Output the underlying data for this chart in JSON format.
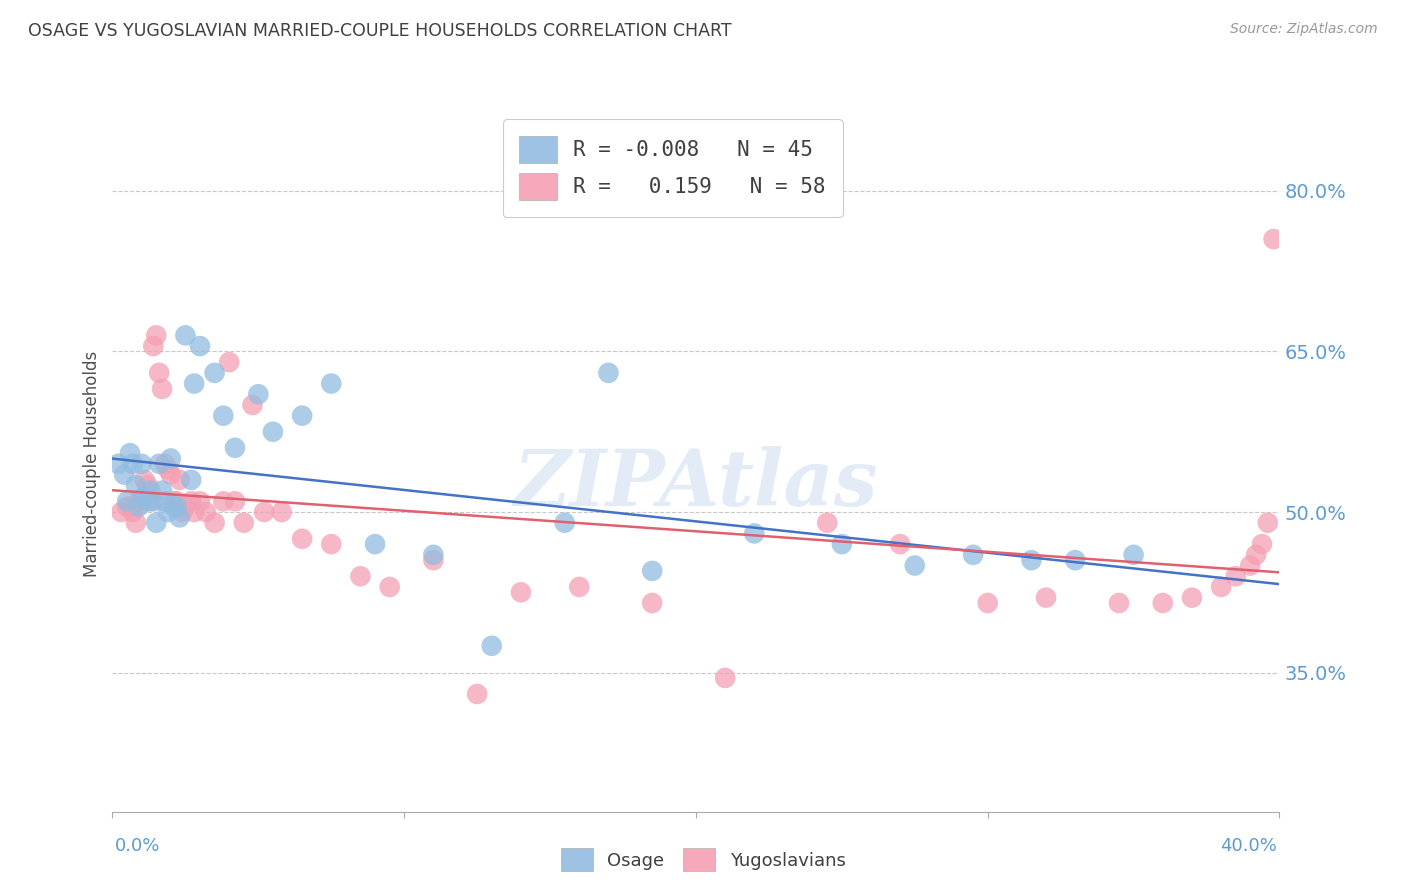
{
  "title": "OSAGE VS YUGOSLAVIAN MARRIED-COUPLE HOUSEHOLDS CORRELATION CHART",
  "source": "Source: ZipAtlas.com",
  "ylabel": "Married-couple Households",
  "right_yticks": [
    35.0,
    50.0,
    65.0,
    80.0
  ],
  "watermark": "ZIPAtlas",
  "osage_color": "#92bce0",
  "yugoslav_color": "#f4a0b4",
  "osage_line_color": "#4472c4",
  "yugoslav_line_color": "#e06070",
  "background_color": "#ffffff",
  "grid_color": "#c8c8c8",
  "axis_color": "#5b9bd5",
  "title_color": "#404040",
  "osage_R": -0.008,
  "osage_N": 45,
  "yugoslav_R": 0.159,
  "yugoslav_N": 58,
  "xlim": [
    0.0,
    0.4
  ],
  "ylim": [
    0.22,
    0.87
  ],
  "osage_x": [
    0.002,
    0.004,
    0.005,
    0.006,
    0.007,
    0.008,
    0.009,
    0.01,
    0.011,
    0.012,
    0.013,
    0.014,
    0.015,
    0.016,
    0.017,
    0.018,
    0.019,
    0.02,
    0.021,
    0.022,
    0.023,
    0.025,
    0.027,
    0.028,
    0.03,
    0.035,
    0.038,
    0.042,
    0.05,
    0.055,
    0.065,
    0.075,
    0.09,
    0.11,
    0.13,
    0.155,
    0.17,
    0.185,
    0.22,
    0.25,
    0.275,
    0.295,
    0.315,
    0.33,
    0.35
  ],
  "osage_y": [
    0.545,
    0.535,
    0.51,
    0.555,
    0.545,
    0.525,
    0.505,
    0.545,
    0.515,
    0.51,
    0.52,
    0.51,
    0.49,
    0.545,
    0.52,
    0.51,
    0.5,
    0.55,
    0.505,
    0.505,
    0.495,
    0.665,
    0.53,
    0.62,
    0.655,
    0.63,
    0.59,
    0.56,
    0.61,
    0.575,
    0.59,
    0.62,
    0.47,
    0.46,
    0.375,
    0.49,
    0.63,
    0.445,
    0.48,
    0.47,
    0.45,
    0.46,
    0.455,
    0.455,
    0.46
  ],
  "yugoslav_x": [
    0.003,
    0.005,
    0.006,
    0.007,
    0.008,
    0.009,
    0.01,
    0.011,
    0.012,
    0.013,
    0.014,
    0.015,
    0.016,
    0.017,
    0.018,
    0.019,
    0.02,
    0.021,
    0.022,
    0.023,
    0.024,
    0.025,
    0.027,
    0.028,
    0.03,
    0.032,
    0.035,
    0.038,
    0.04,
    0.042,
    0.045,
    0.048,
    0.052,
    0.058,
    0.065,
    0.075,
    0.085,
    0.095,
    0.11,
    0.125,
    0.14,
    0.16,
    0.185,
    0.21,
    0.245,
    0.27,
    0.3,
    0.32,
    0.345,
    0.36,
    0.37,
    0.38,
    0.385,
    0.39,
    0.392,
    0.394,
    0.396,
    0.398
  ],
  "yugoslav_y": [
    0.5,
    0.505,
    0.505,
    0.5,
    0.49,
    0.51,
    0.51,
    0.53,
    0.525,
    0.51,
    0.655,
    0.665,
    0.63,
    0.615,
    0.545,
    0.54,
    0.535,
    0.51,
    0.51,
    0.53,
    0.5,
    0.505,
    0.51,
    0.5,
    0.51,
    0.5,
    0.49,
    0.51,
    0.64,
    0.51,
    0.49,
    0.6,
    0.5,
    0.5,
    0.475,
    0.47,
    0.44,
    0.43,
    0.455,
    0.33,
    0.425,
    0.43,
    0.415,
    0.345,
    0.49,
    0.47,
    0.415,
    0.42,
    0.415,
    0.415,
    0.42,
    0.43,
    0.44,
    0.45,
    0.46,
    0.47,
    0.49,
    0.755
  ]
}
